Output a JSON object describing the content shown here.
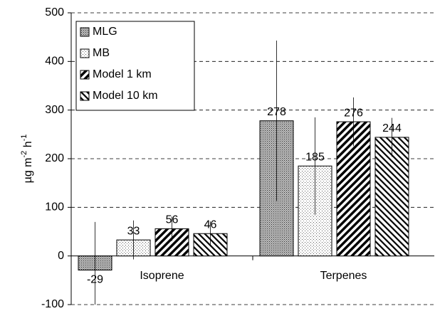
{
  "chart_data": {
    "type": "bar",
    "y_label_parts": [
      "µg m",
      "-2",
      " h",
      "-1"
    ],
    "categories": [
      "Isoprene",
      "Terpenes"
    ],
    "series": [
      {
        "name": "MLG",
        "color": "#000000",
        "values": [
          -29,
          278
        ],
        "errors": [
          99,
          165
        ]
      },
      {
        "name": "MB",
        "color": "#000000",
        "values": [
          33,
          185
        ],
        "errors": [
          40,
          100
        ]
      },
      {
        "name": "Model 1 km",
        "color": "#000000",
        "values": [
          56,
          276
        ],
        "errors": [
          25,
          50
        ]
      },
      {
        "name": "Model 10 km",
        "color": "#000000",
        "values": [
          46,
          244
        ],
        "errors": [
          25,
          40
        ]
      }
    ],
    "ylim": [
      -100,
      500
    ],
    "yticks": [
      -100,
      0,
      100,
      200,
      300,
      400,
      500
    ],
    "grid": true,
    "legend": "upper left"
  }
}
